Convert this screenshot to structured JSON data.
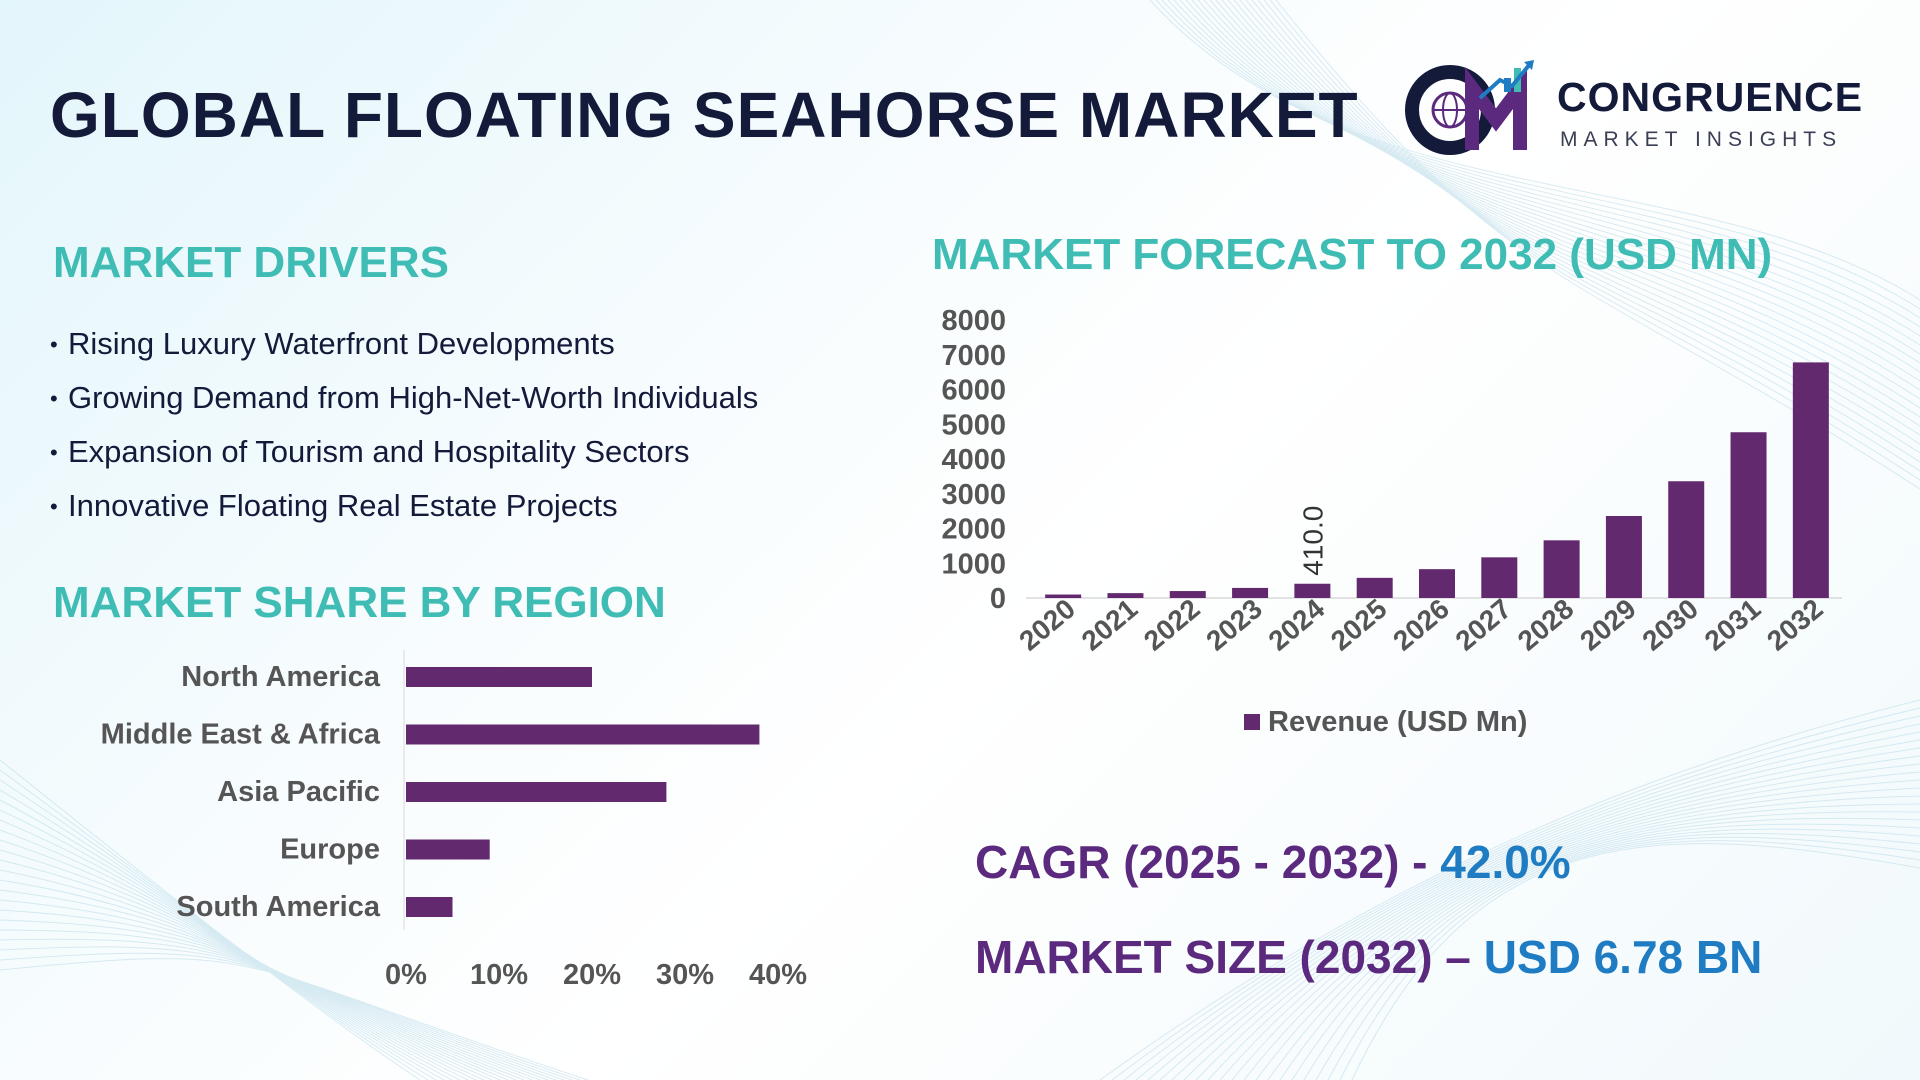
{
  "title": "GLOBAL FLOATING SEAHORSE MARKET",
  "logo": {
    "name": "CONGRUENCE",
    "tagline": "MARKET INSIGHTS"
  },
  "drivers": {
    "title": "MARKET DRIVERS",
    "items": [
      "Rising Luxury Waterfront Developments",
      "Growing Demand from High-Net-Worth Individuals",
      "Expansion of Tourism and Hospitality Sectors",
      "Innovative Floating Real Estate Projects"
    ]
  },
  "region": {
    "title": "MARKET SHARE BY REGION"
  },
  "forecast": {
    "title": "MARKET FORECAST TO 2032 (USD MN)"
  },
  "kpis": {
    "cagr_label": "CAGR (2025 - 2032) - ",
    "cagr_value": "42.0%",
    "size_label": "MARKET SIZE (2032) – ",
    "size_value": "USD 6.78 BN"
  },
  "colors": {
    "bar": "#62296f",
    "teal": "#3fbcb4",
    "navy": "#141a3a",
    "purple": "#5b2a7e",
    "blue": "#1f7cc2"
  },
  "chart_data": [
    {
      "type": "bar",
      "orientation": "horizontal",
      "categories": [
        "North America",
        "Middle East & Africa",
        "Asia Pacific",
        "Europe",
        "South America"
      ],
      "values": [
        20,
        38,
        28,
        9,
        5
      ],
      "xlim": [
        0,
        40
      ],
      "xticks": [
        "0%",
        "10%",
        "20%",
        "30%",
        "40%"
      ],
      "grid": false,
      "legend": "none"
    },
    {
      "type": "bar",
      "categories": [
        "2020",
        "2021",
        "2022",
        "2023",
        "2024",
        "2025",
        "2026",
        "2027",
        "2028",
        "2029",
        "2030",
        "2031",
        "2032"
      ],
      "series": [
        {
          "name": "Revenue (USD Mn)",
          "values": [
            100,
            140,
            200,
            290,
            410,
            580,
            830,
            1170,
            1660,
            2360,
            3360,
            4770,
            6780
          ]
        }
      ],
      "ylim": [
        0,
        8000
      ],
      "yticks": [
        "0",
        "1000",
        "2000",
        "3000",
        "4000",
        "5000",
        "6000",
        "7000",
        "8000"
      ],
      "data_labels": [
        {
          "category": "2024",
          "text": "410.0"
        }
      ],
      "grid": false,
      "legend": "bottom"
    }
  ]
}
